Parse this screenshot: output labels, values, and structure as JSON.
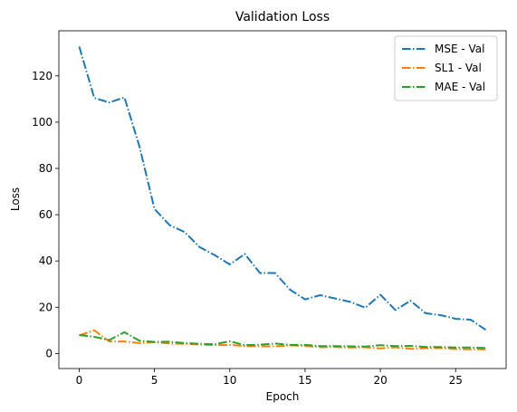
{
  "chart_data": {
    "type": "line",
    "title": "Validation Loss",
    "xlabel": "Epoch",
    "ylabel": "Loss",
    "xlim": [
      -1.35,
      28.35
    ],
    "ylim": [
      -6.5,
      139.5
    ],
    "xticks": [
      0,
      5,
      10,
      15,
      20,
      25
    ],
    "yticks": [
      0,
      20,
      40,
      60,
      80,
      100,
      120
    ],
    "grid": false,
    "legend_position": "top-right",
    "x": [
      0,
      1,
      2,
      3,
      4,
      5,
      6,
      7,
      8,
      9,
      10,
      11,
      12,
      13,
      14,
      15,
      16,
      17,
      18,
      19,
      20,
      21,
      22,
      23,
      24,
      25,
      26,
      27
    ],
    "series": [
      {
        "name": "MSE - Val",
        "color": "#1f77b4",
        "style": "dash-dot",
        "values": [
          132.7,
          110.5,
          108.5,
          110.7,
          89.5,
          62.5,
          55.5,
          52.5,
          46.0,
          42.5,
          38.5,
          43.0,
          34.8,
          34.8,
          27.6,
          23.4,
          25.2,
          23.8,
          22.3,
          19.8,
          25.4,
          18.8,
          22.8,
          17.4,
          16.6,
          15.0,
          14.6,
          10.2
        ]
      },
      {
        "name": "SL1 - Val",
        "color": "#ff7f0e",
        "style": "dash-dot",
        "values": [
          7.8,
          10.0,
          5.2,
          5.2,
          4.5,
          4.9,
          4.3,
          4.2,
          3.9,
          3.6,
          3.7,
          3.2,
          3.1,
          3.1,
          3.5,
          3.3,
          2.7,
          2.8,
          2.6,
          2.7,
          2.2,
          2.7,
          2.0,
          2.3,
          2.3,
          1.9,
          1.8,
          1.8
        ]
      },
      {
        "name": "MAE - Val",
        "color": "#2ca02c",
        "style": "dash-dot",
        "values": [
          8.0,
          7.2,
          5.8,
          9.2,
          5.5,
          5.0,
          5.1,
          4.5,
          4.2,
          4.0,
          5.3,
          3.6,
          3.8,
          4.3,
          3.7,
          3.7,
          3.2,
          3.2,
          3.1,
          3.0,
          3.6,
          3.2,
          3.3,
          2.8,
          2.8,
          2.6,
          2.6,
          2.4
        ]
      }
    ]
  }
}
